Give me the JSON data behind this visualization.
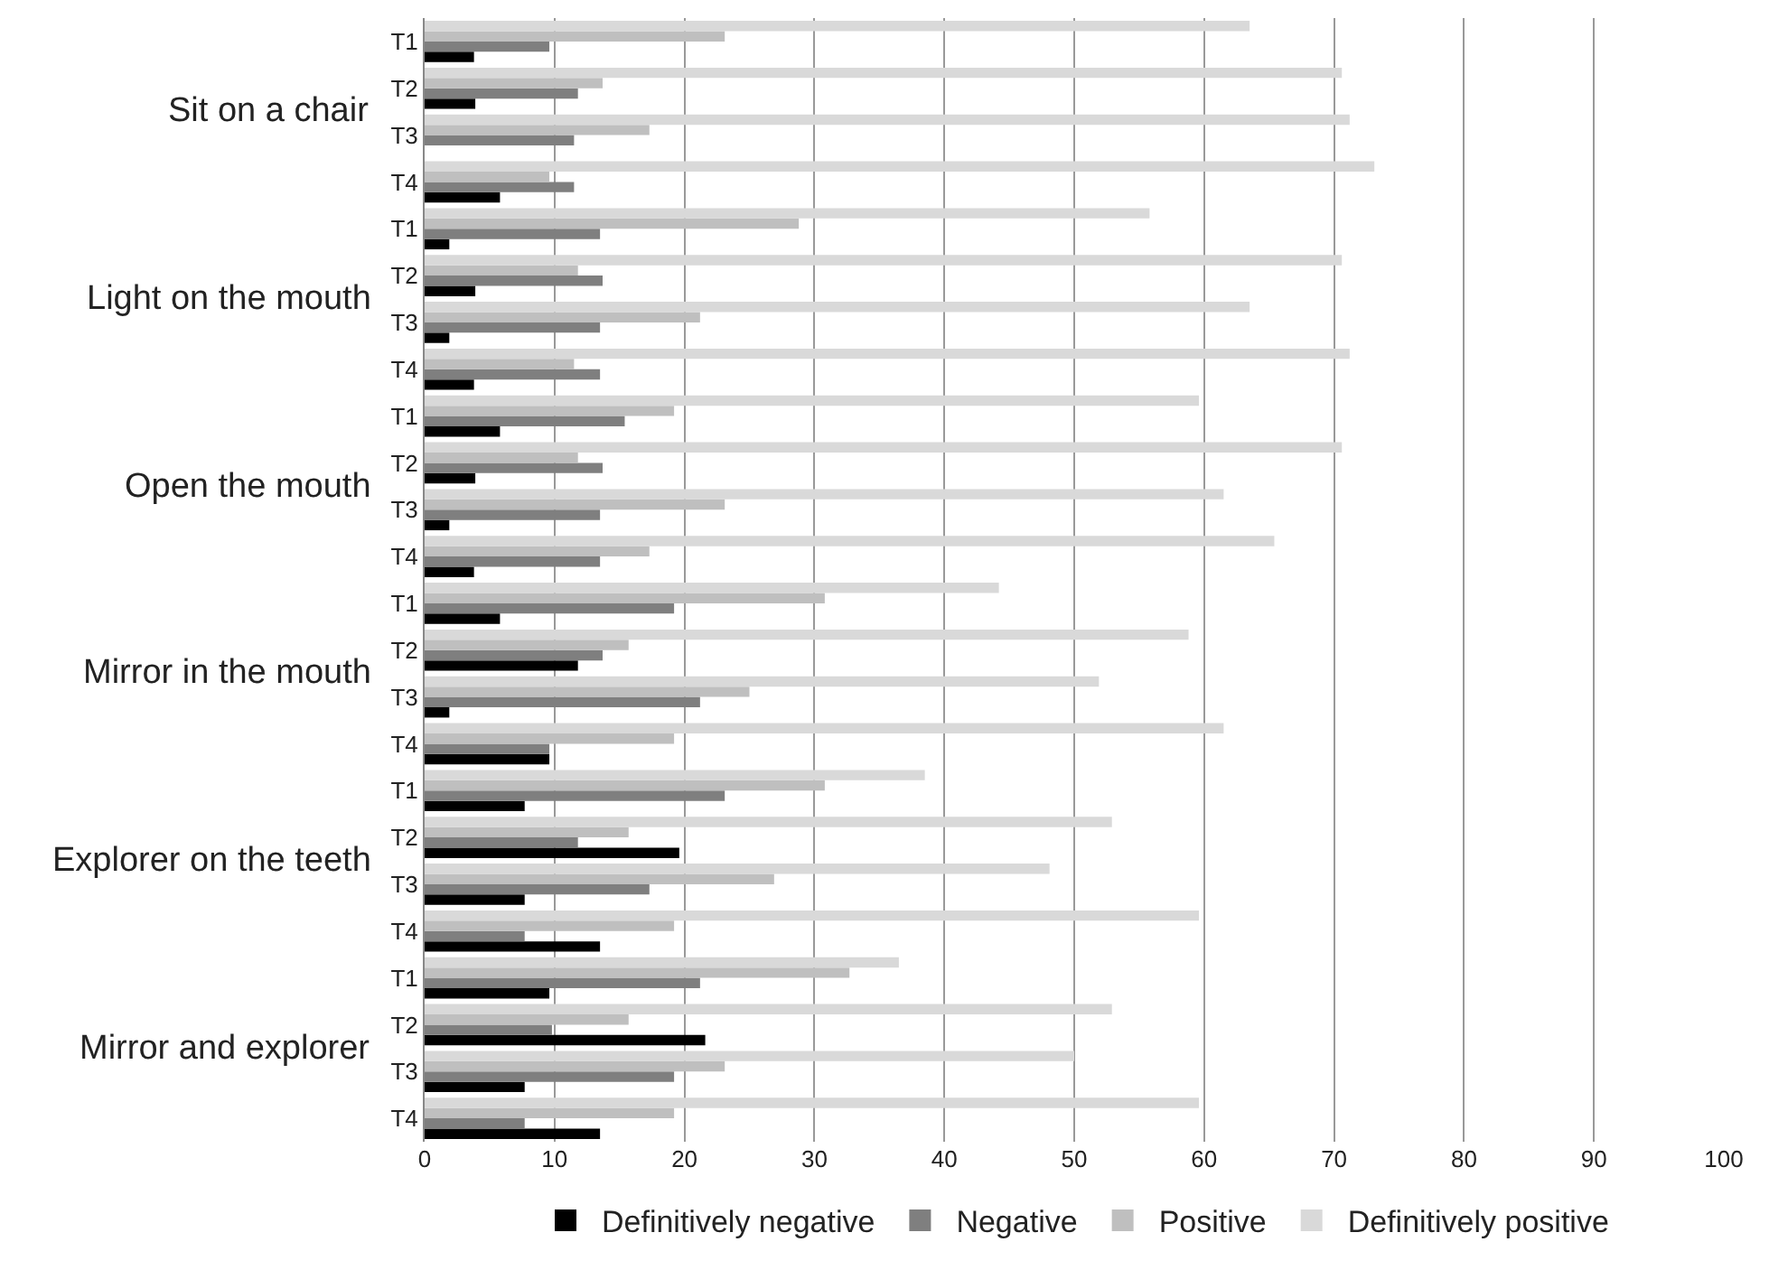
{
  "chart_data": {
    "type": "bar",
    "orientation": "horizontal",
    "categories": [
      "T1",
      "T2",
      "T3",
      "T4",
      "T1",
      "T2",
      "T3",
      "T4",
      "T1",
      "T2",
      "T3",
      "T4",
      "T1",
      "T2",
      "T3",
      "T4",
      "T1",
      "T2",
      "T3",
      "T4",
      "T1",
      "T2",
      "T3",
      "T4"
    ],
    "annotations": [
      "Sit on a chair",
      "Light on the mouth",
      "Open the mouth",
      "Mirror in the mouth",
      "Explorer on the teeth",
      "Mirror and explorer"
    ],
    "series": [
      {
        "name": "Definitively negative",
        "color": "#000000",
        "values": [
          3.8,
          3.9,
          0,
          5.8,
          1.9,
          3.9,
          1.9,
          3.8,
          5.8,
          3.9,
          1.9,
          3.8,
          5.8,
          11.8,
          1.9,
          9.6,
          7.7,
          19.6,
          7.7,
          13.5,
          9.6,
          21.6,
          7.7,
          13.5
        ]
      },
      {
        "name": "Negative",
        "color": "#7f7f7f",
        "values": [
          9.6,
          11.8,
          11.5,
          11.5,
          13.5,
          13.7,
          13.5,
          13.5,
          15.4,
          13.7,
          13.5,
          13.5,
          19.2,
          13.7,
          21.2,
          9.6,
          23.1,
          11.8,
          17.3,
          7.7,
          21.2,
          9.8,
          19.2,
          7.7
        ]
      },
      {
        "name": "Positive",
        "color": "#bfbfbf",
        "values": [
          23.1,
          13.7,
          17.3,
          9.6,
          28.8,
          11.8,
          21.2,
          11.5,
          19.2,
          11.8,
          23.1,
          17.3,
          30.8,
          15.7,
          25.0,
          19.2,
          30.8,
          15.7,
          26.9,
          19.2,
          32.7,
          15.7,
          23.1,
          19.2
        ]
      },
      {
        "name": "Definitively positive",
        "color": "#d9d9d9",
        "values": [
          63.5,
          70.6,
          71.2,
          73.1,
          55.8,
          70.6,
          63.5,
          71.2,
          59.6,
          70.6,
          61.5,
          65.4,
          44.2,
          58.8,
          51.9,
          61.5,
          38.5,
          52.9,
          48.1,
          59.6,
          36.5,
          52.9,
          50.0,
          59.6
        ]
      }
    ],
    "xlim": [
      0,
      100
    ],
    "xticks": [
      0,
      10,
      20,
      30,
      40,
      50,
      60,
      70,
      80,
      90,
      100
    ],
    "grid": "x",
    "legend": "bottom"
  }
}
